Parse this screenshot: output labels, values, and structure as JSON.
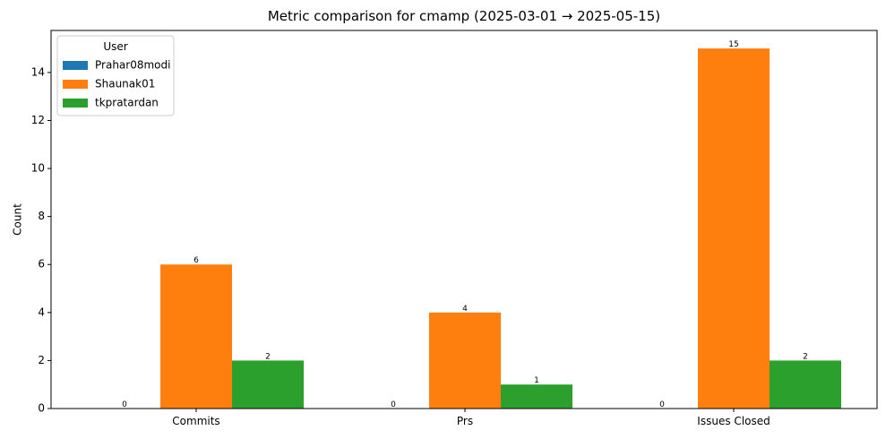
{
  "chart_data": {
    "type": "bar",
    "title": "Metric comparison for cmamp (2025-03-01 → 2025-05-15)",
    "xlabel": "",
    "ylabel": "Count",
    "categories": [
      "Commits",
      "Prs",
      "Issues Closed"
    ],
    "series": [
      {
        "name": "Prahar08modi",
        "values": [
          0,
          0,
          0
        ],
        "color": "#1f77b4"
      },
      {
        "name": "Shaunak01",
        "values": [
          6,
          4,
          15
        ],
        "color": "#ff7f0e"
      },
      {
        "name": "tkpratardan",
        "values": [
          2,
          1,
          2
        ],
        "color": "#2ca02c"
      }
    ],
    "ylim": [
      0,
      15.75
    ],
    "yticks": [
      0,
      2,
      4,
      6,
      8,
      10,
      12,
      14
    ],
    "legend": {
      "title": "User",
      "position": "top-left"
    },
    "grid": false
  }
}
